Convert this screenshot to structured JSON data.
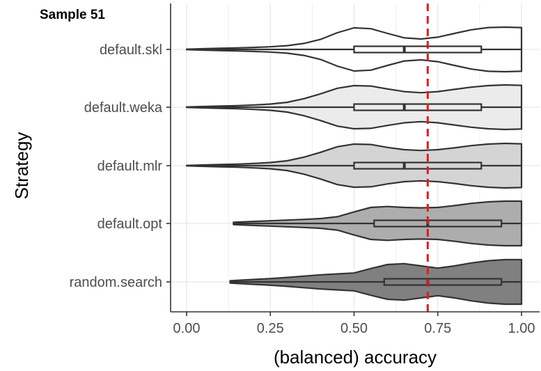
{
  "chart_data": {
    "type": "violin",
    "title": "Sample 51",
    "xlabel": "(balanced) accuracy",
    "ylabel": "Strategy",
    "xlim": [
      0,
      1
    ],
    "x_ticks": [
      "0.00",
      "0.25",
      "0.50",
      "0.75",
      "1.00"
    ],
    "x_tick_values": [
      0,
      0.25,
      0.5,
      0.75,
      1
    ],
    "reference_line": {
      "x": 0.72,
      "color": "#e31a1c",
      "style": "dashed"
    },
    "grid": true,
    "y_grid_values": [
      0,
      0.125,
      0.25,
      0.375,
      0.5,
      0.625,
      0.75,
      0.875,
      1
    ],
    "categories": [
      "default.skl",
      "default.weka",
      "default.mlr",
      "default.opt",
      "random.search"
    ],
    "series": [
      {
        "name": "default.skl",
        "fill": "#ffffff",
        "box": {
          "q1": 0.5,
          "median": 0.65,
          "q3": 0.88,
          "whisker_low": 0.0,
          "whisker_high": 1.0
        },
        "density": [
          [
            0.0,
            0.01
          ],
          [
            0.05,
            0.03
          ],
          [
            0.1,
            0.05
          ],
          [
            0.15,
            0.07
          ],
          [
            0.2,
            0.09
          ],
          [
            0.25,
            0.12
          ],
          [
            0.3,
            0.17
          ],
          [
            0.35,
            0.27
          ],
          [
            0.4,
            0.45
          ],
          [
            0.45,
            0.75
          ],
          [
            0.5,
            0.97
          ],
          [
            0.55,
            0.93
          ],
          [
            0.6,
            0.72
          ],
          [
            0.65,
            0.52
          ],
          [
            0.7,
            0.47
          ],
          [
            0.75,
            0.55
          ],
          [
            0.8,
            0.72
          ],
          [
            0.85,
            0.88
          ],
          [
            0.9,
            0.98
          ],
          [
            0.95,
            1.0
          ],
          [
            1.0,
            0.98
          ]
        ]
      },
      {
        "name": "default.weka",
        "fill": "#ebebeb",
        "box": {
          "q1": 0.5,
          "median": 0.65,
          "q3": 0.88,
          "whisker_low": 0.0,
          "whisker_high": 1.0
        },
        "density": [
          [
            0.0,
            0.01
          ],
          [
            0.05,
            0.03
          ],
          [
            0.1,
            0.05
          ],
          [
            0.15,
            0.07
          ],
          [
            0.2,
            0.1
          ],
          [
            0.25,
            0.14
          ],
          [
            0.3,
            0.22
          ],
          [
            0.35,
            0.38
          ],
          [
            0.4,
            0.6
          ],
          [
            0.45,
            0.85
          ],
          [
            0.5,
            0.97
          ],
          [
            0.55,
            0.95
          ],
          [
            0.6,
            0.82
          ],
          [
            0.65,
            0.7
          ],
          [
            0.7,
            0.65
          ],
          [
            0.75,
            0.7
          ],
          [
            0.8,
            0.8
          ],
          [
            0.85,
            0.9
          ],
          [
            0.9,
            0.97
          ],
          [
            0.95,
            1.0
          ],
          [
            1.0,
            0.98
          ]
        ]
      },
      {
        "name": "default.mlr",
        "fill": "#d4d4d4",
        "box": {
          "q1": 0.5,
          "median": 0.65,
          "q3": 0.88,
          "whisker_low": 0.0,
          "whisker_high": 1.0
        },
        "density": [
          [
            0.0,
            0.01
          ],
          [
            0.05,
            0.03
          ],
          [
            0.1,
            0.05
          ],
          [
            0.15,
            0.07
          ],
          [
            0.2,
            0.1
          ],
          [
            0.25,
            0.14
          ],
          [
            0.3,
            0.22
          ],
          [
            0.35,
            0.38
          ],
          [
            0.4,
            0.6
          ],
          [
            0.45,
            0.85
          ],
          [
            0.5,
            0.97
          ],
          [
            0.55,
            0.95
          ],
          [
            0.6,
            0.82
          ],
          [
            0.65,
            0.72
          ],
          [
            0.7,
            0.68
          ],
          [
            0.75,
            0.72
          ],
          [
            0.8,
            0.8
          ],
          [
            0.85,
            0.9
          ],
          [
            0.9,
            0.97
          ],
          [
            0.95,
            1.0
          ],
          [
            1.0,
            0.98
          ]
        ]
      },
      {
        "name": "default.opt",
        "fill": "#adadad",
        "box": {
          "q1": 0.56,
          "median": 0.72,
          "q3": 0.94,
          "whisker_low": 0.14,
          "whisker_high": 1.0
        },
        "density": [
          [
            0.14,
            0.05
          ],
          [
            0.2,
            0.09
          ],
          [
            0.25,
            0.12
          ],
          [
            0.3,
            0.15
          ],
          [
            0.35,
            0.18
          ],
          [
            0.4,
            0.22
          ],
          [
            0.45,
            0.3
          ],
          [
            0.5,
            0.52
          ],
          [
            0.55,
            0.72
          ],
          [
            0.6,
            0.76
          ],
          [
            0.65,
            0.72
          ],
          [
            0.7,
            0.7
          ],
          [
            0.75,
            0.72
          ],
          [
            0.8,
            0.8
          ],
          [
            0.85,
            0.9
          ],
          [
            0.9,
            0.97
          ],
          [
            0.95,
            1.0
          ],
          [
            1.0,
            1.0
          ]
        ]
      },
      {
        "name": "random.search",
        "fill": "#808080",
        "box": {
          "q1": 0.59,
          "median": 0.72,
          "q3": 0.94,
          "whisker_low": 0.13,
          "whisker_high": 1.0
        },
        "density": [
          [
            0.13,
            0.05
          ],
          [
            0.2,
            0.11
          ],
          [
            0.25,
            0.15
          ],
          [
            0.3,
            0.2
          ],
          [
            0.35,
            0.26
          ],
          [
            0.4,
            0.32
          ],
          [
            0.45,
            0.36
          ],
          [
            0.5,
            0.4
          ],
          [
            0.55,
            0.6
          ],
          [
            0.6,
            0.78
          ],
          [
            0.65,
            0.82
          ],
          [
            0.7,
            0.72
          ],
          [
            0.75,
            0.62
          ],
          [
            0.8,
            0.72
          ],
          [
            0.85,
            0.85
          ],
          [
            0.9,
            0.95
          ],
          [
            0.95,
            1.0
          ],
          [
            1.0,
            1.0
          ]
        ]
      }
    ]
  }
}
